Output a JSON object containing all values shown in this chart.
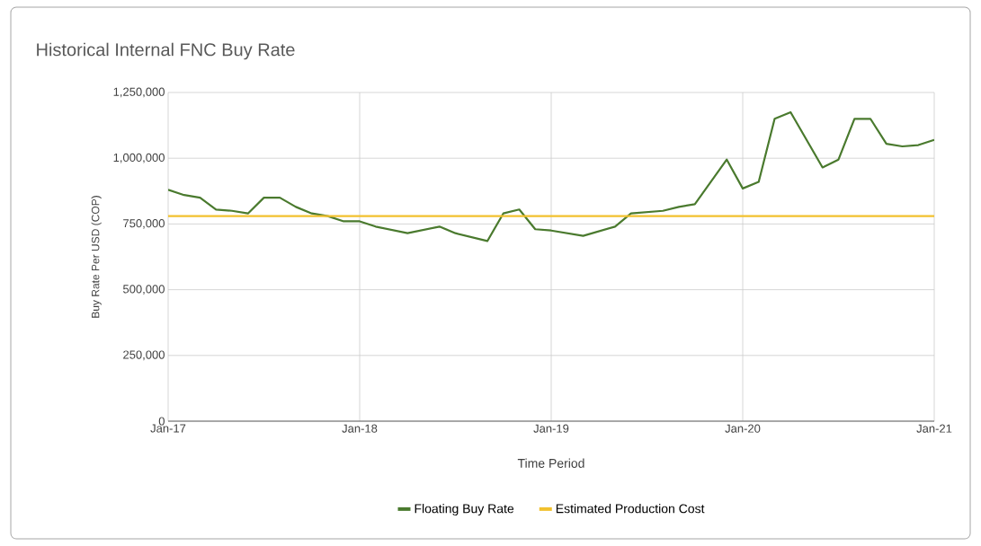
{
  "chart_data": {
    "type": "line",
    "title": "Historical Internal FNC Buy Rate",
    "xlabel": "Time Period",
    "ylabel": "Buy Rate Per USD (COP)",
    "x": [
      "2017-01",
      "2017-02",
      "2017-03",
      "2017-04",
      "2017-05",
      "2017-06",
      "2017-07",
      "2017-08",
      "2017-09",
      "2017-10",
      "2017-11",
      "2017-12",
      "2018-01",
      "2018-02",
      "2018-04",
      "2018-06",
      "2018-07",
      "2018-09",
      "2018-10",
      "2018-11",
      "2018-12",
      "2019-01",
      "2019-03",
      "2019-05",
      "2019-06",
      "2019-08",
      "2019-09",
      "2019-10",
      "2019-12",
      "2020-01",
      "2020-02",
      "2020-03",
      "2020-04",
      "2020-06",
      "2020-07",
      "2020-08",
      "2020-09",
      "2020-10",
      "2020-11",
      "2020-12",
      "2021-01"
    ],
    "series": [
      {
        "name": "Floating Buy Rate",
        "color": "#4a7a2e",
        "values": [
          880000,
          860000,
          850000,
          805000,
          800000,
          790000,
          850000,
          850000,
          815000,
          790000,
          780000,
          760000,
          760000,
          740000,
          715000,
          740000,
          715000,
          685000,
          790000,
          805000,
          730000,
          725000,
          705000,
          740000,
          790000,
          800000,
          815000,
          825000,
          995000,
          885000,
          910000,
          1150000,
          1175000,
          965000,
          995000,
          1150000,
          1150000,
          1055000,
          1045000,
          1050000,
          1070000
        ]
      },
      {
        "name": "Estimated Production Cost",
        "color": "#f2c12e",
        "x": [
          "2017-01",
          "2021-01"
        ],
        "values": [
          780000,
          780000
        ]
      }
    ],
    "xlim": [
      "2017-01",
      "2021-01"
    ],
    "xticks": [
      {
        "value": "2017-01",
        "label": "Jan-17"
      },
      {
        "value": "2018-01",
        "label": "Jan-18"
      },
      {
        "value": "2019-01",
        "label": "Jan-19"
      },
      {
        "value": "2020-01",
        "label": "Jan-20"
      },
      {
        "value": "2021-01",
        "label": "Jan-21"
      }
    ],
    "ylim": [
      0,
      1250000
    ],
    "yticks": [
      {
        "value": 0,
        "label": "0"
      },
      {
        "value": 250000,
        "label": "250,000"
      },
      {
        "value": 500000,
        "label": "500,000"
      },
      {
        "value": 750000,
        "label": "750,000"
      },
      {
        "value": 1000000,
        "label": "1,000,000"
      },
      {
        "value": 1250000,
        "label": "1,250,000"
      }
    ],
    "grid": true,
    "legend": "bottom",
    "marker": "none",
    "line_style": "solid"
  }
}
